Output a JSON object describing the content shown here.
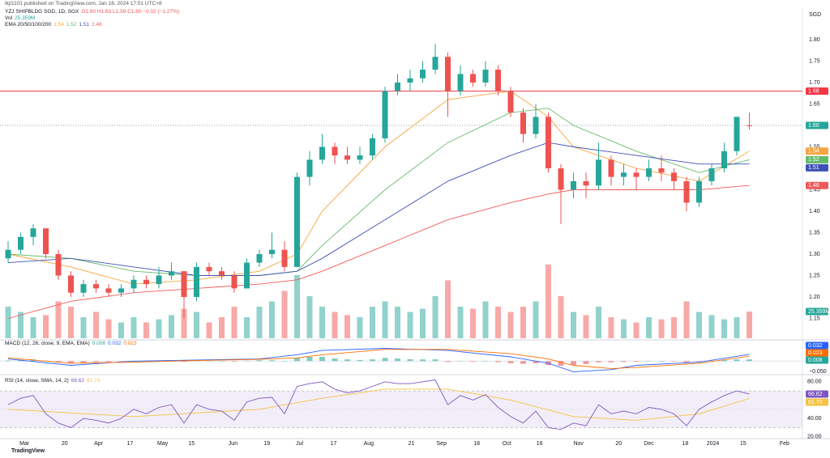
{
  "header": {
    "publisher": "tkjl1101 published on TradingView.com, Jan 18, 2024 17:51 UTC+8",
    "watermark": "TradingView"
  },
  "chart_data": {
    "type": "candlestick",
    "title": "YZJ SHIPBLDG SGD, 1D, SGX",
    "ohlc_text": "O1.60 H1.63 L1.59 C1.60 −0.02 (−1.27%)",
    "currency": "SGD",
    "up_color": "#26a69a",
    "down_color": "#ef5350",
    "ohlc": [
      [
        1.29,
        1.33,
        1.28,
        1.31
      ],
      [
        1.31,
        1.35,
        1.3,
        1.34
      ],
      [
        1.34,
        1.37,
        1.32,
        1.36
      ],
      [
        1.36,
        1.36,
        1.29,
        1.3
      ],
      [
        1.3,
        1.31,
        1.24,
        1.25
      ],
      [
        1.25,
        1.26,
        1.2,
        1.21
      ],
      [
        1.21,
        1.24,
        1.2,
        1.23
      ],
      [
        1.23,
        1.24,
        1.21,
        1.22
      ],
      [
        1.22,
        1.23,
        1.2,
        1.21
      ],
      [
        1.21,
        1.23,
        1.2,
        1.22
      ],
      [
        1.22,
        1.25,
        1.21,
        1.24
      ],
      [
        1.24,
        1.25,
        1.22,
        1.23
      ],
      [
        1.23,
        1.27,
        1.22,
        1.25
      ],
      [
        1.25,
        1.28,
        1.24,
        1.26
      ],
      [
        1.26,
        1.26,
        1.15,
        1.2
      ],
      [
        1.2,
        1.28,
        1.19,
        1.27
      ],
      [
        1.27,
        1.28,
        1.25,
        1.26
      ],
      [
        1.26,
        1.27,
        1.24,
        1.25
      ],
      [
        1.25,
        1.26,
        1.21,
        1.22
      ],
      [
        1.22,
        1.29,
        1.22,
        1.28
      ],
      [
        1.28,
        1.31,
        1.27,
        1.3
      ],
      [
        1.3,
        1.35,
        1.29,
        1.31
      ],
      [
        1.31,
        1.33,
        1.26,
        1.27
      ],
      [
        1.27,
        1.49,
        1.27,
        1.48
      ],
      [
        1.48,
        1.54,
        1.46,
        1.52
      ],
      [
        1.52,
        1.58,
        1.51,
        1.55
      ],
      [
        1.55,
        1.56,
        1.51,
        1.53
      ],
      [
        1.53,
        1.55,
        1.51,
        1.52
      ],
      [
        1.52,
        1.55,
        1.51,
        1.53
      ],
      [
        1.53,
        1.58,
        1.52,
        1.57
      ],
      [
        1.57,
        1.69,
        1.56,
        1.68
      ],
      [
        1.68,
        1.72,
        1.67,
        1.7
      ],
      [
        1.7,
        1.73,
        1.68,
        1.71
      ],
      [
        1.71,
        1.75,
        1.7,
        1.73
      ],
      [
        1.73,
        1.79,
        1.72,
        1.76
      ],
      [
        1.76,
        1.77,
        1.62,
        1.68
      ],
      [
        1.68,
        1.74,
        1.67,
        1.72
      ],
      [
        1.72,
        1.73,
        1.69,
        1.7
      ],
      [
        1.7,
        1.75,
        1.69,
        1.73
      ],
      [
        1.73,
        1.74,
        1.67,
        1.68
      ],
      [
        1.68,
        1.69,
        1.62,
        1.63
      ],
      [
        1.63,
        1.64,
        1.56,
        1.58
      ],
      [
        1.58,
        1.65,
        1.57,
        1.62
      ],
      [
        1.62,
        1.63,
        1.49,
        1.5
      ],
      [
        1.5,
        1.51,
        1.37,
        1.45
      ],
      [
        1.45,
        1.49,
        1.43,
        1.47
      ],
      [
        1.47,
        1.49,
        1.43,
        1.46
      ],
      [
        1.46,
        1.56,
        1.45,
        1.52
      ],
      [
        1.52,
        1.53,
        1.46,
        1.48
      ],
      [
        1.48,
        1.51,
        1.46,
        1.49
      ],
      [
        1.49,
        1.5,
        1.45,
        1.48
      ],
      [
        1.48,
        1.52,
        1.47,
        1.5
      ],
      [
        1.5,
        1.53,
        1.47,
        1.49
      ],
      [
        1.49,
        1.5,
        1.45,
        1.47
      ],
      [
        1.47,
        1.48,
        1.4,
        1.42
      ],
      [
        1.42,
        1.48,
        1.41,
        1.47
      ],
      [
        1.47,
        1.51,
        1.46,
        1.5
      ],
      [
        1.5,
        1.56,
        1.49,
        1.54
      ],
      [
        1.54,
        1.62,
        1.53,
        1.62
      ],
      [
        1.6,
        1.63,
        1.59,
        1.6
      ]
    ],
    "ylim": [
      1.1,
      1.85
    ],
    "yticks": [
      {
        "value": 1.15,
        "label": "1.15"
      },
      {
        "value": 1.2,
        "label": "1.20"
      },
      {
        "value": 1.25,
        "label": "1.25"
      },
      {
        "value": 1.3,
        "label": "1.30"
      },
      {
        "value": 1.35,
        "label": "1.35"
      },
      {
        "value": 1.4,
        "label": "1.40"
      },
      {
        "value": 1.45,
        "label": "1.45"
      },
      {
        "value": 1.5,
        "label": "1.50"
      },
      {
        "value": 1.55,
        "label": "1.55"
      },
      {
        "value": 1.6,
        "label": "1.60"
      },
      {
        "value": 1.65,
        "label": "1.65"
      },
      {
        "value": 1.7,
        "label": "1.70"
      },
      {
        "value": 1.75,
        "label": "1.75"
      },
      {
        "value": 1.8,
        "label": "1.80"
      }
    ],
    "xticks": [
      {
        "value": 1.3,
        "label": "Mar"
      },
      {
        "value": 4.5,
        "label": "20"
      },
      {
        "value": 7.2,
        "label": "Apr"
      },
      {
        "value": 9.7,
        "label": "17"
      },
      {
        "value": 12.3,
        "label": "May"
      },
      {
        "value": 14.6,
        "label": "15"
      },
      {
        "value": 17.9,
        "label": "Jun"
      },
      {
        "value": 20.6,
        "label": "19"
      },
      {
        "value": 23.2,
        "label": "Jul"
      },
      {
        "value": 25.9,
        "label": "17"
      },
      {
        "value": 28.7,
        "label": "Aug"
      },
      {
        "value": 32.1,
        "label": "21"
      },
      {
        "value": 34.5,
        "label": "Sep"
      },
      {
        "value": 37.3,
        "label": "18"
      },
      {
        "value": 39.7,
        "label": "Oct"
      },
      {
        "value": 42.3,
        "label": "16"
      },
      {
        "value": 45.4,
        "label": "Nov"
      },
      {
        "value": 48.6,
        "label": "20"
      },
      {
        "value": 51,
        "label": "Dec"
      },
      {
        "value": 53.9,
        "label": "18"
      },
      {
        "value": 56.1,
        "label": "2024"
      },
      {
        "value": 58.5,
        "label": "15"
      },
      {
        "value": 61.8,
        "label": "Feb"
      }
    ],
    "volume": {
      "name": "Vol",
      "last_label": "25.359M",
      "values": [
        30,
        25,
        20,
        22,
        35,
        30,
        20,
        25,
        18,
        15,
        20,
        15,
        18,
        22,
        28,
        25,
        15,
        20,
        30,
        20,
        30,
        35,
        45,
        60,
        40,
        30,
        25,
        22,
        20,
        30,
        35,
        30,
        25,
        28,
        40,
        55,
        30,
        28,
        35,
        30,
        25,
        30,
        35,
        70,
        40,
        25,
        22,
        30,
        20,
        18,
        15,
        20,
        18,
        20,
        35,
        25,
        22,
        18,
        20,
        25.359
      ]
    },
    "ema": {
      "name": "EMA 20/50/100/200",
      "x": [
        0,
        5,
        10,
        15,
        20,
        23,
        25,
        30,
        35,
        40,
        43,
        45,
        50,
        55,
        59
      ],
      "series": [
        {
          "color": "#f7a440",
          "values": [
            1.3,
            1.27,
            1.23,
            1.24,
            1.26,
            1.3,
            1.4,
            1.55,
            1.66,
            1.68,
            1.62,
            1.55,
            1.5,
            1.47,
            1.54
          ]
        },
        {
          "color": "#66bb6a",
          "values": [
            1.3,
            1.29,
            1.26,
            1.25,
            1.25,
            1.26,
            1.32,
            1.45,
            1.56,
            1.63,
            1.64,
            1.6,
            1.54,
            1.49,
            1.52
          ]
        },
        {
          "color": "#3f51b5",
          "values": [
            1.28,
            1.29,
            1.27,
            1.25,
            1.25,
            1.26,
            1.29,
            1.38,
            1.47,
            1.53,
            1.56,
            1.55,
            1.53,
            1.51,
            1.51
          ]
        },
        {
          "color": "#f05a5a",
          "values": [
            1.15,
            1.19,
            1.21,
            1.22,
            1.23,
            1.24,
            1.26,
            1.32,
            1.38,
            1.42,
            1.44,
            1.45,
            1.45,
            1.45,
            1.46
          ]
        }
      ]
    },
    "hline": {
      "value": 1.68,
      "color": "#f23645"
    },
    "last_price": {
      "value": 1.6,
      "label": "1.60"
    },
    "macd": {
      "type": "macd",
      "title": "MACD (12, 26, close, 9, EMA, EMA)",
      "ylim": [
        -0.06,
        0.1
      ],
      "yticks": [
        {
          "value": -0.05,
          "label": "−0.050"
        }
      ],
      "histogram": [
        0.003,
        0.006,
        0.008,
        0.002,
        -0.006,
        -0.01,
        -0.008,
        -0.005,
        -0.004,
        -0.002,
        0.001,
        0.0,
        0.002,
        0.003,
        -0.003,
        0.002,
        0.001,
        0.0,
        -0.003,
        0.002,
        0.004,
        0.004,
        0.0,
        0.015,
        0.02,
        0.02,
        0.012,
        0.008,
        0.005,
        0.008,
        0.015,
        0.012,
        0.009,
        0.008,
        0.008,
        -0.004,
        0.0,
        -0.003,
        0.0,
        -0.005,
        -0.01,
        -0.013,
        -0.01,
        -0.018,
        -0.022,
        -0.018,
        -0.014,
        -0.006,
        -0.006,
        -0.004,
        -0.003,
        0.0,
        0.0,
        -0.002,
        -0.006,
        -0.002,
        0.002,
        0.005,
        0.008,
        0.008
      ],
      "hist_up_color": "#80cbc4",
      "hist_down_color": "#ef9a9a",
      "x": [
        0,
        5,
        10,
        15,
        20,
        23,
        25,
        30,
        35,
        40,
        43,
        45,
        48,
        50,
        55,
        59
      ],
      "series": [
        {
          "color": "#2962ff",
          "values": [
            0.01,
            -0.02,
            0.0,
            0.005,
            0.01,
            0.03,
            0.05,
            0.06,
            0.05,
            0.02,
            -0.01,
            -0.05,
            -0.04,
            -0.02,
            -0.005,
            0.032
          ]
        },
        {
          "color": "#ff6d00",
          "values": [
            0.015,
            -0.01,
            -0.005,
            0.003,
            0.008,
            0.015,
            0.03,
            0.055,
            0.055,
            0.035,
            0.01,
            -0.02,
            -0.035,
            -0.03,
            -0.01,
            0.023
          ]
        }
      ]
    },
    "rsi": {
      "type": "rsi",
      "title": "RSI (14, close, SMA, 14, 2)",
      "ylim": [
        18,
        86
      ],
      "yticks": [
        {
          "value": 20,
          "label": "20.00"
        },
        {
          "value": 40,
          "label": "40.00"
        },
        {
          "value": 80,
          "label": "80.00"
        }
      ],
      "band": [
        30,
        70
      ],
      "midline": 50,
      "color": "#7e57c2",
      "values": [
        55,
        62,
        65,
        45,
        35,
        30,
        40,
        38,
        35,
        40,
        50,
        45,
        52,
        55,
        35,
        55,
        50,
        48,
        38,
        58,
        62,
        63,
        45,
        75,
        78,
        80,
        72,
        68,
        70,
        75,
        80,
        78,
        78,
        80,
        82,
        55,
        65,
        60,
        66,
        52,
        42,
        35,
        48,
        30,
        28,
        35,
        32,
        55,
        45,
        48,
        45,
        52,
        50,
        45,
        32,
        50,
        58,
        65,
        70,
        66.62
      ],
      "ma": {
        "color": "#f5c242",
        "x": [
          0,
          10,
          20,
          25,
          30,
          35,
          40,
          45,
          50,
          55,
          59
        ],
        "values": [
          50,
          42,
          50,
          62,
          72,
          72,
          60,
          42,
          38,
          45,
          61.73
        ]
      }
    }
  }
}
